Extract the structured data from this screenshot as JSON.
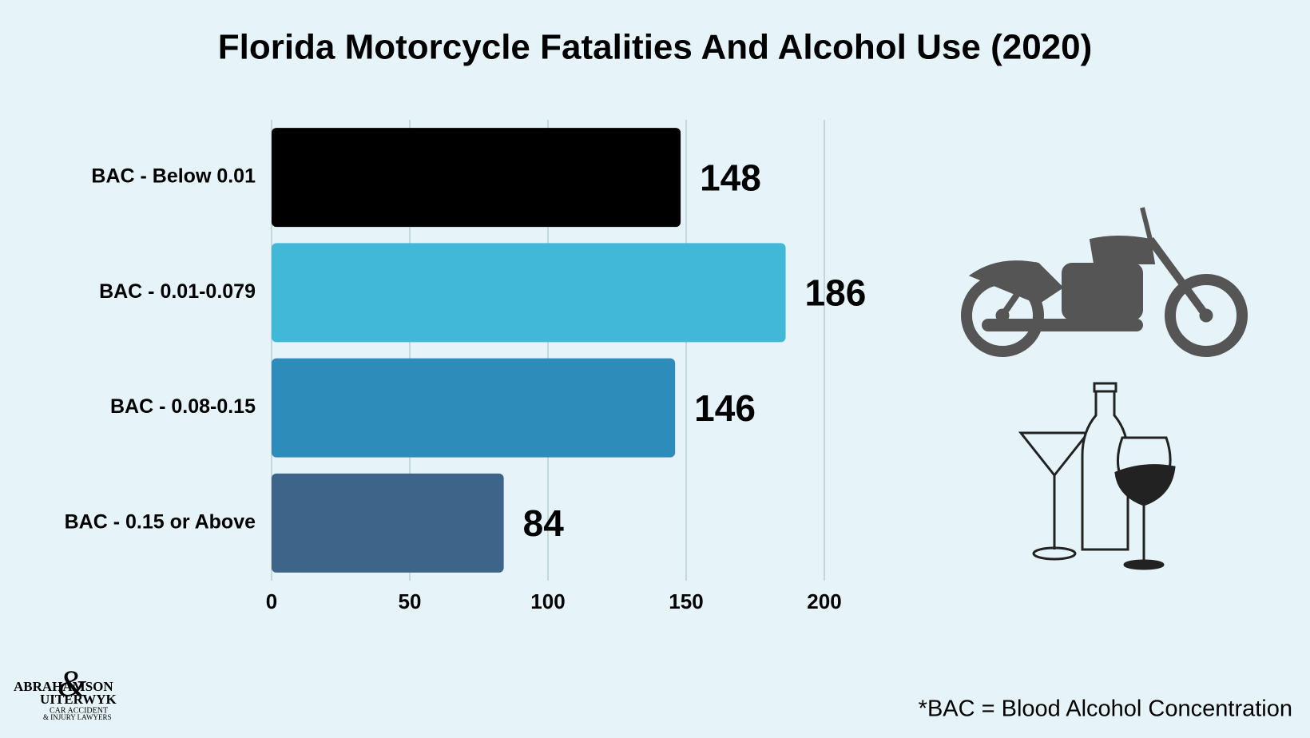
{
  "chart_data": {
    "type": "bar",
    "orientation": "horizontal",
    "title": "Florida Motorcycle Fatalities And Alcohol Use (2020)",
    "categories": [
      "BAC - Below 0.01",
      "BAC - 0.01-0.079",
      "BAC - 0.08-0.15",
      "BAC - 0.15 or Above"
    ],
    "values": [
      148,
      186,
      146,
      84
    ],
    "colors": [
      "#000000",
      "#42b8d8",
      "#2e8cbb",
      "#3d6589"
    ],
    "xlim": [
      0,
      200
    ],
    "xticks": [
      0,
      50,
      100,
      150,
      200
    ],
    "grid": true,
    "footnote": "*BAC = Blood Alcohol Concentration",
    "logo": [
      "ABRAHAMSON",
      "UITERWYK",
      "CAR ACCIDENT",
      "& INJURY LAWYERS"
    ]
  }
}
